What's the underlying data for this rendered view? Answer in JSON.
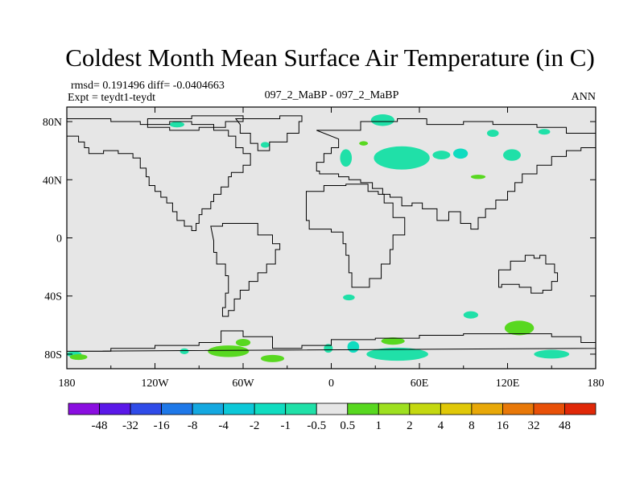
{
  "chart_data": {
    "type": "heatmap",
    "title": "Coldest Month Mean Surface Air Temperature (in C)",
    "stats_line": "rmsd= 0.191496 diff= -0.0404663",
    "expt_line": "Expt = teydt1-teydt",
    "center_label": "097_2_MaBP - 097_2_MaBP",
    "season_label": "ANN",
    "xlim": [
      -180,
      180
    ],
    "ylim": [
      -90,
      90
    ],
    "x_ticks": [
      {
        "value": -180,
        "label": "180"
      },
      {
        "value": -120,
        "label": "120W"
      },
      {
        "value": -60,
        "label": "60W"
      },
      {
        "value": 0,
        "label": "0"
      },
      {
        "value": 60,
        "label": "60E"
      },
      {
        "value": 120,
        "label": "120E"
      },
      {
        "value": 180,
        "label": "180"
      }
    ],
    "y_ticks": [
      {
        "value": 80,
        "label": "80N"
      },
      {
        "value": 40,
        "label": "40N"
      },
      {
        "value": 0,
        "label": "0"
      },
      {
        "value": -40,
        "label": "40S"
      },
      {
        "value": -80,
        "label": "80S"
      }
    ],
    "colorbar": {
      "colors": [
        "#8a0ee0",
        "#5a18e8",
        "#2f4be8",
        "#1e78e8",
        "#14a8e0",
        "#0cc8d8",
        "#10dcc0",
        "#20e0a8",
        "#e6e6e6",
        "#58d820",
        "#9ee020",
        "#c4d810",
        "#e0c808",
        "#e8a808",
        "#e87808",
        "#e85008",
        "#e02808"
      ],
      "labels": [
        "-48",
        "-32",
        "-16",
        "-8",
        "-4",
        "-2",
        "-1",
        "-0.5",
        "0.5",
        "1",
        "2",
        "4",
        "8",
        "16",
        "32",
        "48"
      ]
    },
    "anomaly_patches": [
      {
        "lon": 35,
        "lat": 81,
        "w": 16,
        "h": 8,
        "class": "-1",
        "color": "#20e0a8"
      },
      {
        "lon": 48,
        "lat": 55,
        "w": 38,
        "h": 16,
        "class": "-1",
        "color": "#20e0a8"
      },
      {
        "lon": 10,
        "lat": 55,
        "w": 8,
        "h": 12,
        "class": "-1",
        "color": "#20e0a8"
      },
      {
        "lon": 75,
        "lat": 57,
        "w": 12,
        "h": 6,
        "class": "-1",
        "color": "#20e0a8"
      },
      {
        "lon": 88,
        "lat": 58,
        "w": 10,
        "h": 7,
        "class": "-0.5",
        "color": "#10dcc0"
      },
      {
        "lon": 123,
        "lat": 57,
        "w": 12,
        "h": 8,
        "class": "-1",
        "color": "#20e0a8"
      },
      {
        "lon": 110,
        "lat": 72,
        "w": 8,
        "h": 5,
        "class": "-1",
        "color": "#20e0a8"
      },
      {
        "lon": 145,
        "lat": 73,
        "w": 8,
        "h": 4,
        "class": "-1",
        "color": "#20e0a8"
      },
      {
        "lon": -105,
        "lat": 78,
        "w": 10,
        "h": 4,
        "class": "-1",
        "color": "#20e0a8"
      },
      {
        "lon": -45,
        "lat": 64,
        "w": 6,
        "h": 4,
        "class": "-1",
        "color": "#20e0a8"
      },
      {
        "lon": -100,
        "lat": -78,
        "w": 6,
        "h": 4,
        "class": "-1",
        "color": "#20e0a8"
      },
      {
        "lon": -175,
        "lat": -80,
        "w": 10,
        "h": 4,
        "class": "-1",
        "color": "#20e0a8"
      },
      {
        "lon": 12,
        "lat": -41,
        "w": 8,
        "h": 4,
        "class": "-1",
        "color": "#20e0a8"
      },
      {
        "lon": 45,
        "lat": -80,
        "w": 42,
        "h": 9,
        "class": "-1",
        "color": "#20e0a8"
      },
      {
        "lon": 15,
        "lat": -75,
        "w": 8,
        "h": 8,
        "class": "-0.5",
        "color": "#10dcc0"
      },
      {
        "lon": 95,
        "lat": -53,
        "w": 10,
        "h": 5,
        "class": "-1",
        "color": "#20e0a8"
      },
      {
        "lon": 150,
        "lat": -80,
        "w": 24,
        "h": 6,
        "class": "-1",
        "color": "#20e0a8"
      },
      {
        "lon": -2,
        "lat": -76,
        "w": 6,
        "h": 6,
        "class": "-1",
        "color": "#20e0a8"
      },
      {
        "lon": 128,
        "lat": -62,
        "w": 20,
        "h": 10,
        "class": "1",
        "color": "#58d820"
      },
      {
        "lon": -70,
        "lat": -78,
        "w": 28,
        "h": 8,
        "class": "1",
        "color": "#58d820"
      },
      {
        "lon": -60,
        "lat": -72,
        "w": 10,
        "h": 5,
        "class": "1",
        "color": "#58d820"
      },
      {
        "lon": -40,
        "lat": -83,
        "w": 16,
        "h": 5,
        "class": "1",
        "color": "#58d820"
      },
      {
        "lon": -172,
        "lat": -82,
        "w": 12,
        "h": 4,
        "class": "1",
        "color": "#58d820"
      },
      {
        "lon": 42,
        "lat": -71,
        "w": 16,
        "h": 5,
        "class": "1",
        "color": "#58d820"
      },
      {
        "lon": 22,
        "lat": 65,
        "w": 6,
        "h": 3,
        "class": "1",
        "color": "#58d820"
      },
      {
        "lon": 100,
        "lat": 42,
        "w": 10,
        "h": 3,
        "class": "1",
        "color": "#58d820"
      }
    ],
    "continent_outlines": [
      [
        [
          -180,
          82
        ],
        [
          -160,
          82
        ],
        [
          -150,
          80
        ],
        [
          -130,
          78
        ],
        [
          -110,
          80
        ],
        [
          -95,
          78
        ],
        [
          -80,
          74
        ],
        [
          -70,
          70
        ],
        [
          -65,
          62
        ],
        [
          -60,
          58
        ],
        [
          -55,
          50
        ],
        [
          -60,
          45
        ],
        [
          -68,
          42
        ],
        [
          -70,
          35
        ],
        [
          -75,
          30
        ],
        [
          -80,
          25
        ],
        [
          -82,
          20
        ],
        [
          -88,
          16
        ],
        [
          -90,
          10
        ],
        [
          -92,
          5
        ],
        [
          -95,
          8
        ],
        [
          -100,
          12
        ],
        [
          -105,
          18
        ],
        [
          -108,
          24
        ],
        [
          -112,
          28
        ],
        [
          -116,
          32
        ],
        [
          -120,
          36
        ],
        [
          -124,
          42
        ],
        [
          -126,
          48
        ],
        [
          -130,
          55
        ],
        [
          -135,
          58
        ],
        [
          -145,
          60
        ],
        [
          -155,
          58
        ],
        [
          -165,
          62
        ],
        [
          -168,
          66
        ],
        [
          -172,
          70
        ],
        [
          -180,
          74
        ]
      ],
      [
        [
          -125,
          82
        ],
        [
          -95,
          84
        ],
        [
          -70,
          84
        ],
        [
          -60,
          80
        ],
        [
          -72,
          76
        ],
        [
          -90,
          74
        ],
        [
          -110,
          76
        ],
        [
          -125,
          78
        ]
      ],
      [
        [
          -65,
          82
        ],
        [
          -35,
          84
        ],
        [
          -20,
          80
        ],
        [
          -22,
          72
        ],
        [
          -30,
          66
        ],
        [
          -42,
          60
        ],
        [
          -50,
          65
        ],
        [
          -55,
          72
        ],
        [
          -62,
          78
        ]
      ],
      [
        [
          -10,
          74
        ],
        [
          20,
          80
        ],
        [
          45,
          82
        ],
        [
          65,
          78
        ],
        [
          90,
          80
        ],
        [
          110,
          78
        ],
        [
          140,
          76
        ],
        [
          160,
          72
        ],
        [
          180,
          70
        ],
        [
          180,
          62
        ],
        [
          170,
          60
        ],
        [
          160,
          56
        ],
        [
          150,
          50
        ],
        [
          140,
          44
        ],
        [
          130,
          38
        ],
        [
          125,
          32
        ],
        [
          120,
          26
        ],
        [
          112,
          20
        ],
        [
          105,
          14
        ],
        [
          100,
          6
        ],
        [
          95,
          10
        ],
        [
          88,
          18
        ],
        [
          80,
          12
        ],
        [
          72,
          20
        ],
        [
          62,
          24
        ],
        [
          55,
          22
        ],
        [
          48,
          28
        ],
        [
          40,
          30
        ],
        [
          35,
          34
        ],
        [
          28,
          38
        ],
        [
          20,
          40
        ],
        [
          12,
          42
        ],
        [
          5,
          44
        ],
        [
          -2,
          44
        ],
        [
          -8,
          46
        ],
        [
          -10,
          52
        ],
        [
          -5,
          58
        ],
        [
          0,
          62
        ],
        [
          5,
          68
        ]
      ],
      [
        [
          -17,
          32
        ],
        [
          -5,
          36
        ],
        [
          10,
          37
        ],
        [
          25,
          32
        ],
        [
          32,
          30
        ],
        [
          36,
          24
        ],
        [
          42,
          14
        ],
        [
          50,
          10
        ],
        [
          50,
          2
        ],
        [
          42,
          -8
        ],
        [
          40,
          -18
        ],
        [
          34,
          -28
        ],
        [
          26,
          -34
        ],
        [
          18,
          -34
        ],
        [
          14,
          -24
        ],
        [
          12,
          -12
        ],
        [
          10,
          -4
        ],
        [
          8,
          4
        ],
        [
          0,
          6
        ],
        [
          -8,
          6
        ],
        [
          -15,
          12
        ],
        [
          -17,
          20
        ]
      ],
      [
        [
          -82,
          8
        ],
        [
          -74,
          10
        ],
        [
          -62,
          10
        ],
        [
          -50,
          2
        ],
        [
          -40,
          -4
        ],
        [
          -35,
          -8
        ],
        [
          -38,
          -18
        ],
        [
          -44,
          -24
        ],
        [
          -50,
          -30
        ],
        [
          -56,
          -36
        ],
        [
          -62,
          -42
        ],
        [
          -66,
          -50
        ],
        [
          -70,
          -54
        ],
        [
          -74,
          -48
        ],
        [
          -72,
          -38
        ],
        [
          -70,
          -26
        ],
        [
          -72,
          -18
        ],
        [
          -78,
          -10
        ],
        [
          -80,
          -2
        ]
      ],
      [
        [
          114,
          -22
        ],
        [
          122,
          -16
        ],
        [
          132,
          -12
        ],
        [
          138,
          -14
        ],
        [
          142,
          -12
        ],
        [
          146,
          -18
        ],
        [
          152,
          -24
        ],
        [
          154,
          -30
        ],
        [
          150,
          -36
        ],
        [
          144,
          -38
        ],
        [
          136,
          -34
        ],
        [
          128,
          -32
        ],
        [
          116,
          -34
        ],
        [
          114,
          -28
        ]
      ],
      [
        [
          -180,
          -78
        ],
        [
          -150,
          -76
        ],
        [
          -120,
          -74
        ],
        [
          -90,
          -72
        ],
        [
          -75,
          -64
        ],
        [
          -60,
          -68
        ],
        [
          -40,
          -76
        ],
        [
          -20,
          -74
        ],
        [
          0,
          -70
        ],
        [
          30,
          -69
        ],
        [
          60,
          -67
        ],
        [
          90,
          -66
        ],
        [
          120,
          -66
        ],
        [
          150,
          -68
        ],
        [
          170,
          -72
        ],
        [
          180,
          -76
        ]
      ]
    ]
  }
}
